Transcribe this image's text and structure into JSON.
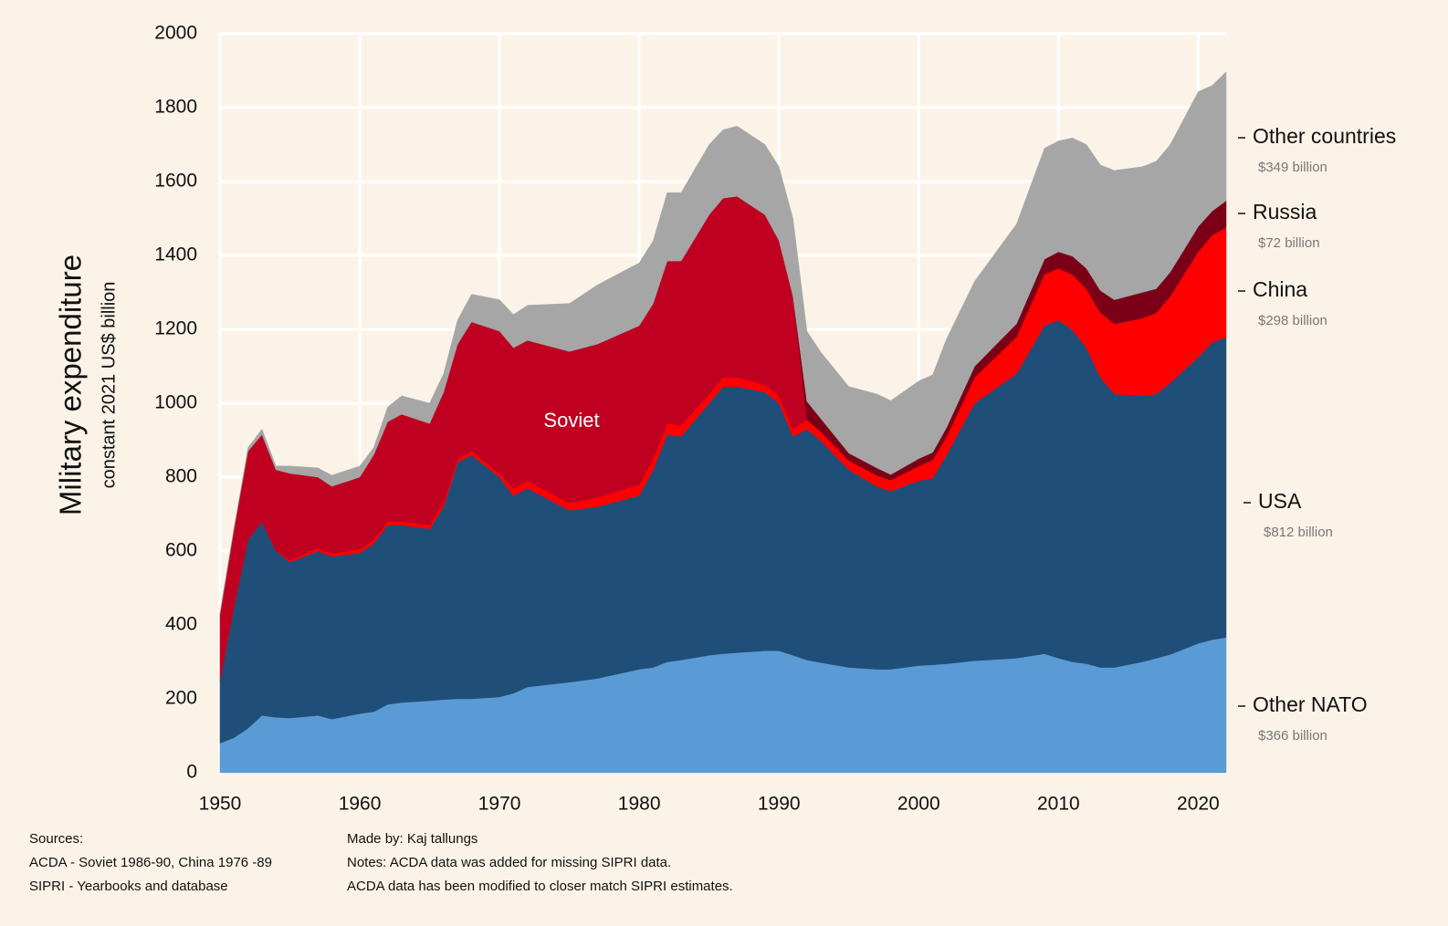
{
  "chart_data": {
    "type": "stacked_area",
    "y_label": "Military expenditure",
    "y_sublabel": "constant 2021 US$ billion",
    "annotation": "Soviet",
    "xlim": [
      1950,
      2022
    ],
    "xticks": [
      1950,
      1960,
      1970,
      1980,
      1990,
      2000,
      2010,
      2020
    ],
    "ylim": [
      0,
      2000
    ],
    "yticks": [
      0,
      200,
      400,
      600,
      800,
      1000,
      1200,
      1400,
      1600,
      1800,
      2000
    ],
    "grid": true,
    "x": [
      1950,
      1951,
      1952,
      1953,
      1954,
      1955,
      1957,
      1958,
      1960,
      1961,
      1962,
      1963,
      1965,
      1966,
      1967,
      1968,
      1970,
      1971,
      1972,
      1975,
      1977,
      1980,
      1981,
      1982,
      1983,
      1985,
      1986,
      1987,
      1989,
      1990,
      1991,
      1992,
      1993,
      1995,
      1997,
      1998,
      2000,
      2001,
      2002,
      2004,
      2007,
      2009,
      2010,
      2011,
      2012,
      2013,
      2014,
      2016,
      2017,
      2018,
      2020,
      2021,
      2022
    ],
    "series": [
      {
        "name": "Other NATO",
        "color": "#5b9bd5",
        "end_label": "$366 billion",
        "values": [
          80,
          95,
          120,
          155,
          150,
          148,
          155,
          145,
          160,
          165,
          185,
          190,
          195,
          198,
          200,
          200,
          205,
          215,
          232,
          245,
          255,
          280,
          285,
          300,
          305,
          318,
          322,
          325,
          330,
          330,
          318,
          305,
          298,
          285,
          280,
          280,
          290,
          292,
          295,
          303,
          310,
          322,
          310,
          300,
          295,
          285,
          285,
          300,
          310,
          320,
          350,
          360,
          366
        ]
      },
      {
        "name": "USA",
        "color": "#1f4e79",
        "end_label": "$812 billion",
        "values": [
          170,
          355,
          510,
          525,
          450,
          422,
          445,
          440,
          435,
          455,
          485,
          480,
          465,
          522,
          640,
          660,
          595,
          535,
          538,
          465,
          465,
          470,
          535,
          615,
          605,
          682,
          723,
          720,
          700,
          670,
          592,
          625,
          600,
          535,
          495,
          482,
          500,
          505,
          565,
          697,
          770,
          888,
          915,
          898,
          855,
          785,
          740,
          720,
          715,
          735,
          775,
          805,
          812
        ]
      },
      {
        "name": "China",
        "color": "#ff0000",
        "end_label": "$298 billion",
        "values": [
          0,
          0,
          0,
          0,
          0,
          5,
          8,
          8,
          10,
          10,
          10,
          10,
          10,
          10,
          10,
          10,
          10,
          20,
          20,
          20,
          25,
          30,
          30,
          30,
          30,
          25,
          25,
          25,
          20,
          20,
          20,
          25,
          25,
          25,
          30,
          30,
          40,
          50,
          50,
          70,
          100,
          140,
          140,
          150,
          160,
          175,
          190,
          210,
          220,
          235,
          285,
          290,
          298
        ]
      },
      {
        "name": "Soviet",
        "color": "#c00020",
        "values": [
          180,
          210,
          240,
          235,
          220,
          235,
          192,
          182,
          195,
          230,
          270,
          290,
          275,
          300,
          310,
          350,
          385,
          380,
          380,
          410,
          415,
          430,
          420,
          440,
          445,
          485,
          485,
          490,
          460,
          420,
          360,
          0,
          0,
          0,
          0,
          0,
          0,
          0,
          0,
          0,
          0,
          0,
          0,
          0,
          0,
          0,
          0,
          0,
          0,
          0,
          0,
          0,
          0
        ]
      },
      {
        "name": "Russia",
        "color": "#7b0017",
        "end_label": "$72 billion",
        "values": [
          0,
          0,
          0,
          0,
          0,
          0,
          0,
          0,
          0,
          0,
          0,
          0,
          0,
          0,
          0,
          0,
          0,
          0,
          0,
          0,
          0,
          0,
          0,
          0,
          0,
          0,
          0,
          0,
          0,
          0,
          0,
          50,
          35,
          20,
          20,
          15,
          20,
          20,
          25,
          30,
          35,
          40,
          45,
          50,
          55,
          60,
          65,
          70,
          65,
          65,
          68,
          65,
          72
        ]
      },
      {
        "name": "Other countries",
        "color": "#a6a6a6",
        "end_label": "$349 billion",
        "values": [
          0,
          0,
          10,
          15,
          10,
          20,
          25,
          30,
          30,
          20,
          40,
          50,
          55,
          50,
          65,
          75,
          85,
          90,
          95,
          130,
          160,
          170,
          170,
          185,
          185,
          190,
          185,
          190,
          190,
          200,
          210,
          190,
          180,
          180,
          200,
          200,
          210,
          210,
          240,
          230,
          270,
          300,
          300,
          320,
          335,
          340,
          350,
          340,
          345,
          345,
          365,
          340,
          349
        ]
      }
    ]
  },
  "footer": {
    "sources": [
      "Sources:",
      "ACDA - Soviet 1986-90, China 1976 -89",
      "SIPRI - Yearbooks and database"
    ],
    "notes": [
      "Made by: Kaj tallungs",
      "Notes: ACDA data was added for missing SIPRI data.",
      "ACDA data has been modified to closer match SIPRI estimates."
    ]
  }
}
